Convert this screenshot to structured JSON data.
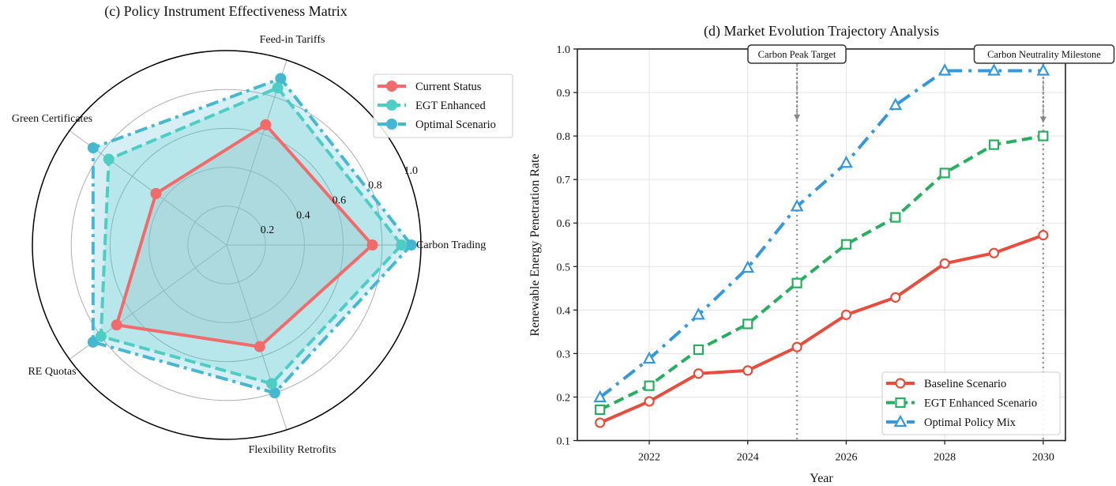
{
  "chart_data": [
    {
      "type": "radar",
      "title": "(c) Policy Instrument Effectiveness Matrix",
      "categories": [
        "Carbon Trading",
        "Feed-in Tariffs",
        "Green Certificates",
        "RE Quotas",
        "Flexibility Retrofits"
      ],
      "rlim": [
        0,
        1.0
      ],
      "r_ticks": [
        0.2,
        0.4,
        0.6,
        0.8,
        1.0
      ],
      "r_tick_labels": [
        "0.2",
        "0.4",
        "0.6",
        "0.8",
        "1.0"
      ],
      "grid": true,
      "legend_position": "top-right",
      "series": [
        {
          "name": "Current Status",
          "values": [
            0.75,
            0.65,
            0.45,
            0.7,
            0.55
          ],
          "color": "#f26b6b",
          "linestyle": "solid",
          "marker": "circle"
        },
        {
          "name": "EGT Enhanced",
          "values": [
            0.9,
            0.85,
            0.75,
            0.8,
            0.75
          ],
          "color": "#4ecdc4",
          "linestyle": "dashed",
          "marker": "circle"
        },
        {
          "name": "Optimal Scenario",
          "values": [
            0.95,
            0.9,
            0.85,
            0.85,
            0.8
          ],
          "color": "#45b7d1",
          "linestyle": "dashdot",
          "marker": "circle"
        }
      ]
    },
    {
      "type": "line",
      "title": "(d) Market Evolution Trajectory Analysis",
      "xlabel": "Year",
      "ylabel": "Renewable Energy Penetration Rate",
      "x": [
        2021,
        2022,
        2023,
        2024,
        2025,
        2026,
        2027,
        2028,
        2029,
        2030
      ],
      "xlim": [
        2020.5,
        2030.45
      ],
      "ylim": [
        0.1,
        1.0
      ],
      "x_ticks": [
        2022,
        2024,
        2026,
        2028,
        2030
      ],
      "x_tick_labels": [
        "2022",
        "2024",
        "2026",
        "2028",
        "2030"
      ],
      "y_ticks": [
        0.1,
        0.2,
        0.3,
        0.4,
        0.5,
        0.6,
        0.7,
        0.8,
        0.9,
        1.0
      ],
      "y_tick_labels": [
        "0.1",
        "0.2",
        "0.3",
        "0.4",
        "0.5",
        "0.6",
        "0.7",
        "0.8",
        "0.9",
        "1.0"
      ],
      "grid": true,
      "legend_position": "bottom-right",
      "series": [
        {
          "name": "Baseline Scenario",
          "values": [
            0.141,
            0.19,
            0.254,
            0.261,
            0.315,
            0.389,
            0.429,
            0.507,
            0.531,
            0.572
          ],
          "color": "#e74c3c",
          "linestyle": "solid",
          "marker": "circle"
        },
        {
          "name": "EGT Enhanced Scenario",
          "values": [
            0.171,
            0.226,
            0.309,
            0.368,
            0.462,
            0.551,
            0.613,
            0.715,
            0.78,
            0.8
          ],
          "color": "#27ae60",
          "linestyle": "dashed",
          "marker": "square"
        },
        {
          "name": "Optimal Policy Mix",
          "values": [
            0.199,
            0.288,
            0.389,
            0.497,
            0.638,
            0.738,
            0.871,
            0.95,
            0.95,
            0.95
          ],
          "color": "#3498db",
          "linestyle": "dashdot",
          "marker": "triangle"
        }
      ],
      "annotations": [
        {
          "text": "Carbon Peak Target",
          "x": 2025,
          "arrow_to_y": 0.835,
          "vline": true
        },
        {
          "text": "Carbon Neutrality Milestone",
          "x": 2030,
          "arrow_to_y": 0.83,
          "vline": true
        }
      ]
    }
  ]
}
